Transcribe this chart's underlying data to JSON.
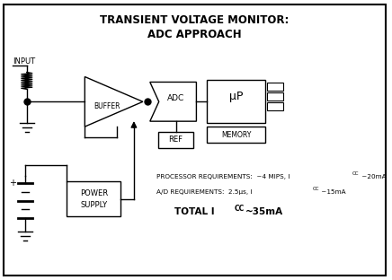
{
  "title_line1": "TRANSIENT VOLTAGE MONITOR:",
  "title_line2": "ADC APPROACH",
  "bg_color": "#ffffff",
  "border_color": "#000000",
  "text_color": "#000000",
  "fig_width": 4.36,
  "fig_height": 3.12,
  "dpi": 100,
  "labels": {
    "input": "INPUT",
    "buffer": "BUFFER",
    "adc": "ADC",
    "ref": "REF",
    "uP": "μP",
    "memory": "MEMORY",
    "power_supply_line1": "POWER",
    "power_supply_line2": "SUPPLY",
    "proc_req": "PROCESSOR REQUIREMENTS:  ~4 MIPS, I",
    "proc_req2": "CC ~20mA",
    "ad_req": "A/D REQUIREMENTS:  2.5μs, I",
    "ad_req2": "CC ~15mA",
    "total_pre": "TOTAL I",
    "total_post": "CC~35mA"
  }
}
